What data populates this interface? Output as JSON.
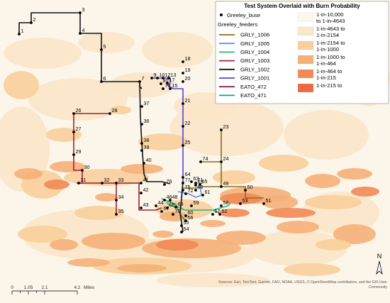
{
  "map": {
    "title": "Test System Overlaid with Burn Probability",
    "legend": {
      "bus_label": "Greeley_buse",
      "feeders_header": "Greeley_feeders",
      "feeders": [
        {
          "name": "GRLY_1006",
          "color": "#8c6d1f"
        },
        {
          "name": "GRLY_1005",
          "color": "#5b8ff0"
        },
        {
          "name": "GRLY_1004",
          "color": "#2bb673"
        },
        {
          "name": "GRLY_1003",
          "color": "#a3213a"
        },
        {
          "name": "GRLY_1002",
          "color": "#111111"
        },
        {
          "name": "GRLY_1001",
          "color": "#5540d8"
        },
        {
          "name": "EATO_472",
          "color": "#8e1f4f"
        },
        {
          "name": "EATO_471",
          "color": "#1f9c7a"
        }
      ],
      "burn_classes": [
        {
          "line1": "1-in-10,000",
          "line2": "to 1-in-4643",
          "color": "#fdf8ee"
        },
        {
          "line1": "1-in-4643 to",
          "line2": "1-in-2154",
          "color": "#fbe6c9"
        },
        {
          "line1": "1-in-2154 to",
          "line2": "1-in-1000",
          "color": "#f8cf9b"
        },
        {
          "line1": "1-in-1000 to",
          "line2": "1-in-464",
          "color": "#f5b079"
        },
        {
          "line1": "1-in-464 to",
          "line2": "1-in-215",
          "color": "#f18a55"
        },
        {
          "line1": "1-in-215 to",
          "line2": "",
          "color": "#ec6a40"
        }
      ]
    },
    "scale_bar": {
      "ticks": [
        "0",
        "1.05",
        "2.1",
        "4.2"
      ],
      "unit": "Miles"
    },
    "north_label": "N",
    "credits_line1": "Sources: Esri, TomTom, Garmin, FAO, NOAA, USGS, © OpenStreetMap contributors, and the GIS User",
    "credits_line2": "Community",
    "bus_labels": [
      "1",
      "2",
      "3",
      "4",
      "5",
      "6",
      "7",
      "9",
      "10",
      "12",
      "13",
      "17",
      "80",
      "73",
      "15",
      "18",
      "19",
      "20",
      "21",
      "22",
      "23",
      "24",
      "25",
      "26",
      "27",
      "28",
      "29",
      "30",
      "31",
      "32",
      "33",
      "34",
      "35",
      "36",
      "37",
      "38",
      "39",
      "40",
      "41",
      "42",
      "43",
      "44",
      "46",
      "48",
      "49",
      "50",
      "51",
      "52",
      "53",
      "54",
      "55",
      "56",
      "57",
      "58",
      "59",
      "60",
      "61",
      "62",
      "63",
      "64",
      "65",
      "66",
      "67",
      "68",
      "69",
      "70",
      "71",
      "72",
      "74",
      "75",
      "76",
      "77",
      "78",
      "79"
    ]
  }
}
